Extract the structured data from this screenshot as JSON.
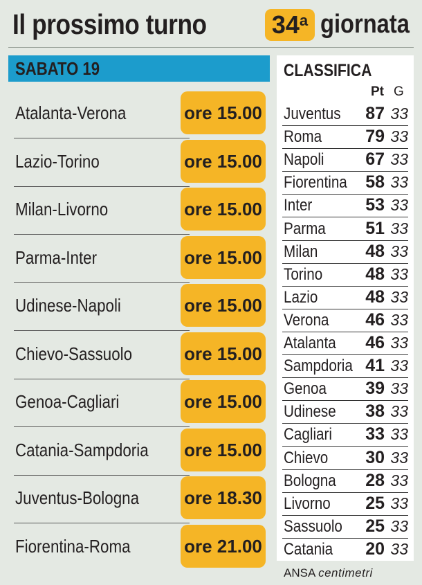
{
  "header": {
    "title": "Il prossimo turno",
    "round_number": "34",
    "round_suffix": "a",
    "round_word": "giornata"
  },
  "schedule": {
    "day": "SABATO 19",
    "matches": [
      {
        "teams": "Atalanta-Verona",
        "time": "ore 15.00"
      },
      {
        "teams": "Lazio-Torino",
        "time": "ore 15.00"
      },
      {
        "teams": "Milan-Livorno",
        "time": "ore 15.00"
      },
      {
        "teams": "Parma-Inter",
        "time": "ore 15.00"
      },
      {
        "teams": "Udinese-Napoli",
        "time": "ore 15.00"
      },
      {
        "teams": "Chievo-Sassuolo",
        "time": "ore 15.00"
      },
      {
        "teams": "Genoa-Cagliari",
        "time": "ore 15.00"
      },
      {
        "teams": "Catania-Sampdoria",
        "time": "ore 15.00"
      },
      {
        "teams": "Juventus-Bologna",
        "time": "ore 18.30"
      },
      {
        "teams": "Fiorentina-Roma",
        "time": "ore 21.00"
      }
    ]
  },
  "standings": {
    "title": "CLASSIFICA",
    "col_points": "Pt",
    "col_games": "G",
    "rows": [
      {
        "team": "Juventus",
        "pt": "87",
        "g": "33"
      },
      {
        "team": "Roma",
        "pt": "79",
        "g": "33"
      },
      {
        "team": "Napoli",
        "pt": "67",
        "g": "33"
      },
      {
        "team": "Fiorentina",
        "pt": "58",
        "g": "33"
      },
      {
        "team": "Inter",
        "pt": "53",
        "g": "33"
      },
      {
        "team": "Parma",
        "pt": "51",
        "g": "33"
      },
      {
        "team": "Milan",
        "pt": "48",
        "g": "33"
      },
      {
        "team": "Torino",
        "pt": "48",
        "g": "33"
      },
      {
        "team": "Lazio",
        "pt": "48",
        "g": "33"
      },
      {
        "team": "Verona",
        "pt": "46",
        "g": "33"
      },
      {
        "team": "Atalanta",
        "pt": "46",
        "g": "33"
      },
      {
        "team": "Sampdoria",
        "pt": "41",
        "g": "33"
      },
      {
        "team": "Genoa",
        "pt": "39",
        "g": "33"
      },
      {
        "team": "Udinese",
        "pt": "38",
        "g": "33"
      },
      {
        "team": "Cagliari",
        "pt": "33",
        "g": "33"
      },
      {
        "team": "Chievo",
        "pt": "30",
        "g": "33"
      },
      {
        "team": "Bologna",
        "pt": "28",
        "g": "33"
      },
      {
        "team": "Livorno",
        "pt": "25",
        "g": "33"
      },
      {
        "team": "Sassuolo",
        "pt": "25",
        "g": "33"
      },
      {
        "team": "Catania",
        "pt": "20",
        "g": "33"
      }
    ]
  },
  "source": {
    "agency": "ANSA",
    "brand": "centimetri"
  },
  "colors": {
    "background": "#e4e9e3",
    "accent_orange": "#f5b526",
    "banner_blue": "#1c9ccc",
    "text": "#231f20"
  }
}
